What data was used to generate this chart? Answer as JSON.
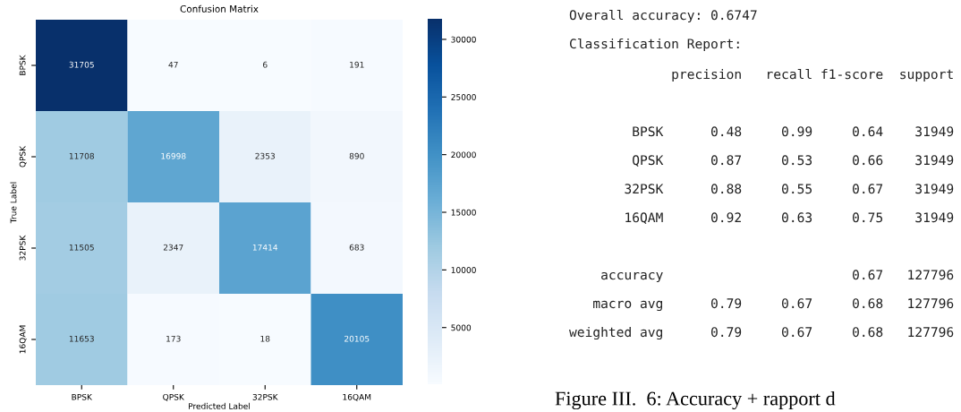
{
  "chart_data": [
    {
      "type": "heatmap",
      "title": "Confusion Matrix",
      "xlabel": "Predicted Label",
      "ylabel": "True Label",
      "categories": [
        "BPSK",
        "QPSK",
        "32PSK",
        "16QAM"
      ],
      "y_categories": [
        "BPSK",
        "QPSK",
        "32PSK",
        "16QAM"
      ],
      "cells": [
        [
          31705,
          47,
          6,
          191
        ],
        [
          11708,
          16998,
          2353,
          890
        ],
        [
          11505,
          2347,
          17414,
          683
        ],
        [
          11653,
          173,
          18,
          20105
        ]
      ],
      "data_labels": true,
      "clim": [
        6,
        31705
      ],
      "cticks": [
        5000,
        10000,
        15000,
        20000,
        25000,
        30000
      ]
    },
    {
      "type": "other",
      "title": "Overall accuracy: 0.6747",
      "subtitle": "Classification Report:",
      "annotations": [
        "             precision   recall f1-score  support",
        "        BPSK      0.48     0.99     0.64    31949",
        "        QPSK      0.87     0.53     0.66    31949",
        "       32PSK      0.88     0.55     0.67    31949",
        "       16QAM      0.92     0.63     0.75    31949",
        "    accuracy                        0.67   127796",
        "   macro avg      0.79     0.67     0.68   127796",
        "weighted avg      0.79     0.67     0.68   127796"
      ]
    },
    {
      "type": "other",
      "title": "Figure III.  6: Accuracy + rapport d"
    }
  ]
}
